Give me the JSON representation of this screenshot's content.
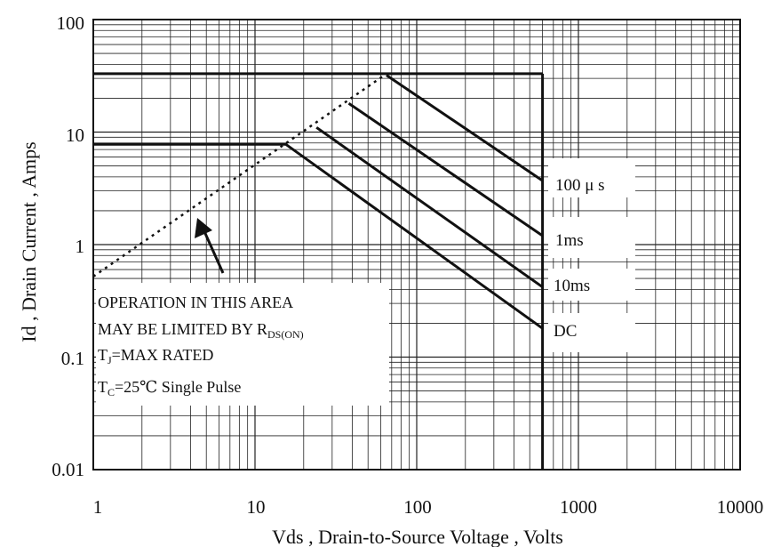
{
  "chart_data": {
    "type": "line",
    "title": "",
    "xlabel": "Vds , Drain-to-Source Voltage , Volts",
    "ylabel": "Id , Drain Current , Amps",
    "xscale": "log",
    "yscale": "log",
    "xlim": [
      1,
      10000
    ],
    "ylim": [
      0.01,
      100
    ],
    "grid": true,
    "x_ticks": [
      "1",
      "10",
      "100",
      "1000",
      "10000"
    ],
    "y_ticks": [
      "100",
      "10",
      "1",
      "0.1",
      "0.01"
    ],
    "series": [
      {
        "name": "100 μ s",
        "x": [
          65,
          600
        ],
        "y": [
          32,
          3.7
        ]
      },
      {
        "name": "1ms",
        "x": [
          38,
          600
        ],
        "y": [
          18,
          1.2
        ]
      },
      {
        "name": "10ms",
        "x": [
          24,
          600
        ],
        "y": [
          11,
          0.42
        ]
      },
      {
        "name": "DC",
        "x": [
          1,
          15.5,
          600
        ],
        "y": [
          7.8,
          7.8,
          0.18
        ]
      }
    ],
    "limits": {
      "max_pulsed_current": 33,
      "max_voltage": 600
    },
    "rds_on_limit_line": {
      "x": [
        1,
        65
      ],
      "y": [
        0.52,
        33
      ]
    },
    "annotation": {
      "line1": "OPERATION IN THIS AREA",
      "line2_main": "MAY BE LIMITED BY R",
      "line2_sub": "DS(ON)",
      "line3_main": "T",
      "line3_sub": "J",
      "line3_rest": "=MAX RATED",
      "line4_main": "T",
      "line4_sub": "C",
      "line4_rest": "=25℃  Single Pulse"
    }
  }
}
